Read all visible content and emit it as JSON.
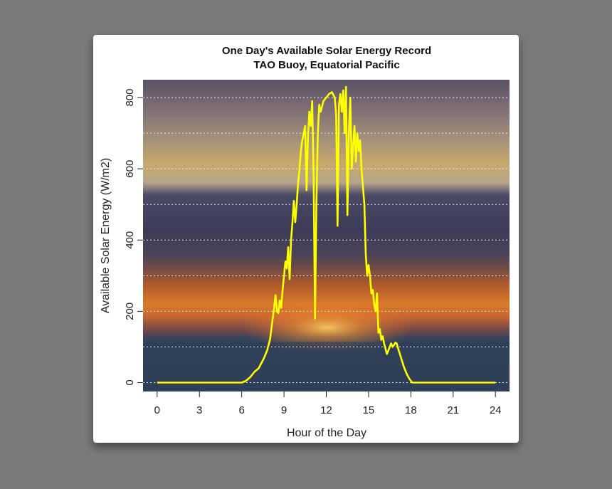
{
  "chart_data": {
    "type": "line",
    "title": "One Day's Available Solar Energy Record",
    "subtitle": "TAO Buoy, Equatorial Pacific",
    "xlabel": "Hour of the Day",
    "ylabel": "Available Solar Energy (W/m2)",
    "xlim": [
      -1,
      25
    ],
    "ylim": [
      -25,
      850
    ],
    "xticks": [
      0,
      3,
      6,
      9,
      12,
      15,
      18,
      21,
      24
    ],
    "yticks": [
      0,
      200,
      400,
      600,
      800
    ],
    "grid_lines_y": [
      0,
      100,
      200,
      300,
      400,
      500,
      600,
      700,
      800
    ],
    "line_color": "#ffff00",
    "grid_color": "#e8e8e8",
    "background": "sunset over ocean photograph",
    "series": [
      {
        "name": "Available Solar Energy",
        "x": [
          0,
          3,
          6,
          6.3,
          6.6,
          6.9,
          7.2,
          7.4,
          7.6,
          7.8,
          8.0,
          8.1,
          8.2,
          8.3,
          8.4,
          8.5,
          8.6,
          8.7,
          8.8,
          8.9,
          9.0,
          9.1,
          9.2,
          9.3,
          9.4,
          9.5,
          9.6,
          9.7,
          9.8,
          9.9,
          10.0,
          10.1,
          10.2,
          10.3,
          10.4,
          10.5,
          10.6,
          10.7,
          10.8,
          10.9,
          11.0,
          11.1,
          11.2,
          11.3,
          11.4,
          11.5,
          11.6,
          11.8,
          12.0,
          12.2,
          12.4,
          12.6,
          12.7,
          12.8,
          12.9,
          13.0,
          13.1,
          13.2,
          13.3,
          13.4,
          13.5,
          13.6,
          13.7,
          13.8,
          13.9,
          14.0,
          14.1,
          14.2,
          14.3,
          14.4,
          14.5,
          14.6,
          14.7,
          14.8,
          14.9,
          15.0,
          15.1,
          15.2,
          15.3,
          15.4,
          15.5,
          15.6,
          15.7,
          15.8,
          15.9,
          16.0,
          16.1,
          16.2,
          16.3,
          16.4,
          16.5,
          16.6,
          16.7,
          16.8,
          16.9,
          17.0,
          17.1,
          17.3,
          17.5,
          17.7,
          17.9,
          18.1,
          18.5,
          21,
          24
        ],
        "values": [
          0,
          0,
          0,
          5,
          15,
          30,
          40,
          55,
          70,
          90,
          120,
          150,
          180,
          210,
          245,
          200,
          195,
          230,
          210,
          260,
          300,
          340,
          320,
          380,
          290,
          400,
          450,
          510,
          450,
          500,
          560,
          600,
          650,
          680,
          700,
          720,
          540,
          690,
          760,
          720,
          790,
          580,
          180,
          500,
          700,
          780,
          760,
          790,
          800,
          810,
          815,
          800,
          750,
          440,
          780,
          810,
          760,
          820,
          700,
          830,
          470,
          700,
          800,
          600,
          660,
          720,
          620,
          700,
          650,
          680,
          600,
          550,
          500,
          360,
          300,
          330,
          300,
          250,
          260,
          220,
          200,
          250,
          140,
          150,
          120,
          130,
          110,
          95,
          80,
          90,
          100,
          110,
          100,
          105,
          112,
          110,
          95,
          70,
          45,
          25,
          10,
          0,
          0,
          0,
          0
        ]
      }
    ]
  }
}
